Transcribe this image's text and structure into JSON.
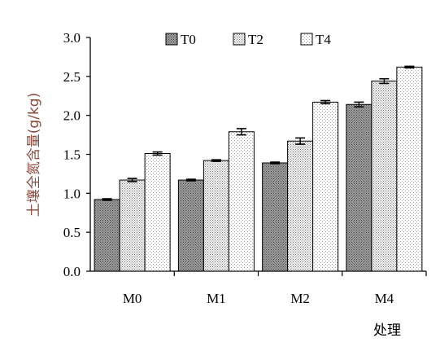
{
  "chart_data": {
    "type": "bar",
    "categories": [
      "M0",
      "M1",
      "M2",
      "M4"
    ],
    "series": [
      {
        "name": "T0",
        "values": [
          0.92,
          1.17,
          1.39,
          2.14
        ],
        "errors": [
          0.01,
          0.01,
          0.01,
          0.03
        ],
        "pattern": "dark"
      },
      {
        "name": "T2",
        "values": [
          1.17,
          1.42,
          1.67,
          2.44
        ],
        "errors": [
          0.02,
          0.01,
          0.04,
          0.03
        ],
        "pattern": "medium"
      },
      {
        "name": "T4",
        "values": [
          1.51,
          1.79,
          2.17,
          2.62
        ],
        "errors": [
          0.02,
          0.04,
          0.02,
          0.01
        ],
        "pattern": "light"
      }
    ],
    "title": "",
    "xlabel": "处理",
    "ylabel": "土壤全氮含量(g/kg)",
    "ylim": [
      0,
      3.0
    ],
    "yticks": [
      0,
      0.5,
      1.0,
      1.5,
      2.0,
      2.5,
      3.0
    ],
    "ytick_labels": [
      "0.0",
      "0.5",
      "1.0",
      "1.5",
      "2.0",
      "2.5",
      "3.0"
    ],
    "grid": false,
    "legend_position": "top",
    "colors": {
      "axis": "#000000",
      "ylabel": "#8a4a3c",
      "dark_fill": "#8c8c8c",
      "medium_fill": "#e4e4e4",
      "light_fill": "#ffffff"
    }
  }
}
